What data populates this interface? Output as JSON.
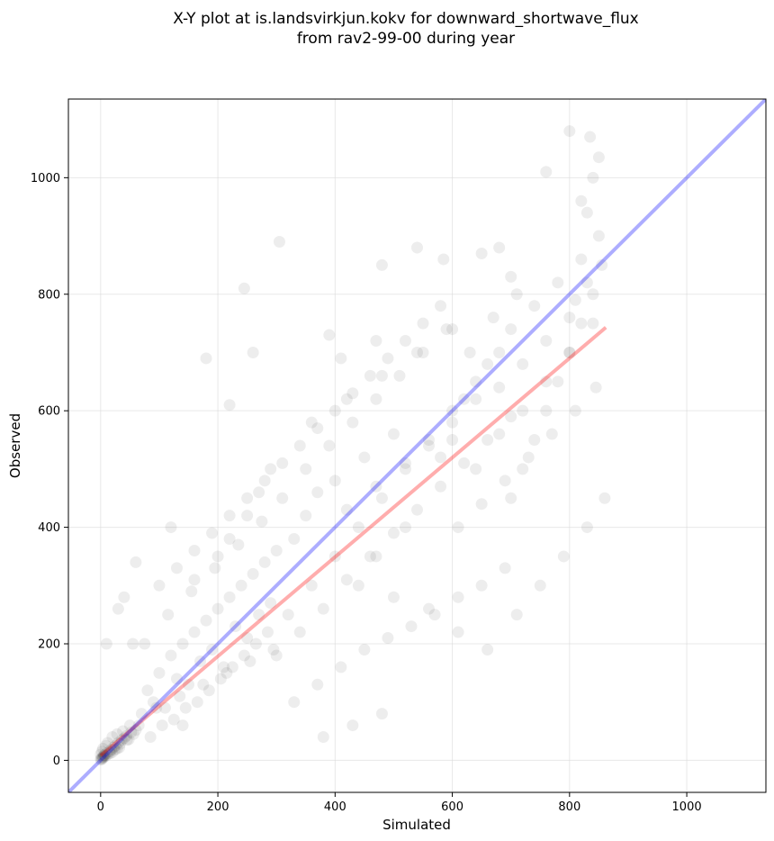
{
  "chart_data": {
    "type": "scatter",
    "title": "X-Y plot at is.landsvirkjun.kokv for downward_shortwave_flux",
    "subtitle": "from rav2-99-00 during year",
    "xlabel": "Simulated",
    "ylabel": "Observed",
    "xlim": [
      -55,
      1135
    ],
    "ylim": [
      -55,
      1135
    ],
    "x_ticks": [
      0,
      200,
      400,
      600,
      800,
      1000
    ],
    "y_ticks": [
      0,
      200,
      400,
      600,
      800,
      1000
    ],
    "grid": true,
    "point_color": "#000000",
    "point_opacity": 0.07,
    "identity_line": {
      "x": [
        -55,
        1135
      ],
      "y": [
        -55,
        1135
      ],
      "color": "#0000ff",
      "opacity": 0.32
    },
    "regression_line": {
      "x": [
        0,
        862
      ],
      "y": [
        8,
        743
      ],
      "color": "#ff0000",
      "opacity": 0.32
    },
    "points": {
      "x": [
        0,
        1,
        2,
        3,
        4,
        5,
        6,
        8,
        10,
        12,
        15,
        18,
        20,
        22,
        25,
        28,
        30,
        33,
        36,
        40,
        44,
        48,
        52,
        56,
        60,
        65,
        0,
        2,
        4,
        6,
        9,
        12,
        16,
        20,
        24,
        28,
        32,
        38,
        45,
        50,
        70,
        80,
        90,
        100,
        110,
        120,
        130,
        140,
        150,
        160,
        170,
        180,
        190,
        200,
        210,
        220,
        230,
        240,
        250,
        260,
        270,
        280,
        290,
        300,
        75,
        95,
        115,
        135,
        155,
        175,
        195,
        215,
        235,
        255,
        275,
        295,
        85,
        105,
        125,
        145,
        165,
        185,
        205,
        225,
        245,
        265,
        285,
        100,
        130,
        160,
        190,
        220,
        250,
        280,
        310,
        340,
        370,
        400,
        430,
        460,
        490,
        520,
        550,
        580,
        300,
        320,
        340,
        360,
        380,
        400,
        420,
        440,
        460,
        480,
        500,
        520,
        540,
        560,
        580,
        600,
        620,
        640,
        660,
        680,
        700,
        310,
        350,
        390,
        430,
        470,
        510,
        550,
        590,
        630,
        670,
        710,
        330,
        370,
        410,
        450,
        490,
        530,
        570,
        610,
        650,
        690,
        600,
        620,
        640,
        660,
        680,
        700,
        720,
        740,
        760,
        780,
        800,
        820,
        840,
        850,
        610,
        650,
        690,
        730,
        770,
        810,
        845,
        700,
        720,
        740,
        760,
        780,
        800,
        820,
        840,
        855,
        710,
        750,
        790,
        830,
        860,
        180,
        245,
        305,
        390,
        470,
        480,
        540,
        585,
        650,
        680,
        700,
        760,
        800,
        820,
        835,
        850,
        840,
        830,
        410,
        140,
        120,
        60,
        55,
        10,
        220,
        260,
        400,
        450,
        500,
        420,
        470,
        520,
        560,
        600,
        640,
        580,
        680,
        720,
        760,
        800,
        810,
        830,
        250,
        270,
        290,
        330,
        350,
        370,
        200,
        220,
        160,
        40,
        30,
        360,
        420,
        480,
        540,
        600,
        520,
        470,
        440,
        500,
        560,
        610,
        660,
        480,
        430,
        380
      ],
      "y": [
        2,
        1,
        4,
        3,
        6,
        5,
        9,
        7,
        12,
        10,
        15,
        18,
        14,
        22,
        25,
        20,
        30,
        28,
        35,
        38,
        42,
        36,
        48,
        45,
        52,
        60,
        10,
        15,
        20,
        8,
        25,
        30,
        12,
        40,
        18,
        45,
        22,
        50,
        35,
        60,
        80,
        120,
        100,
        150,
        90,
        180,
        140,
        200,
        130,
        220,
        170,
        240,
        190,
        260,
        160,
        280,
        230,
        300,
        210,
        320,
        250,
        340,
        270,
        360,
        200,
        90,
        250,
        110,
        290,
        130,
        330,
        150,
        370,
        170,
        410,
        190,
        40,
        60,
        70,
        90,
        100,
        120,
        140,
        160,
        180,
        200,
        220,
        300,
        330,
        360,
        390,
        420,
        450,
        480,
        510,
        540,
        570,
        600,
        630,
        660,
        690,
        720,
        750,
        780,
        180,
        250,
        220,
        300,
        260,
        350,
        310,
        400,
        350,
        450,
        390,
        500,
        430,
        550,
        470,
        600,
        510,
        650,
        550,
        700,
        590,
        450,
        500,
        540,
        580,
        620,
        660,
        700,
        740,
        700,
        760,
        800,
        100,
        130,
        160,
        190,
        210,
        230,
        250,
        280,
        300,
        330,
        550,
        620,
        500,
        680,
        560,
        740,
        600,
        780,
        650,
        820,
        700,
        860,
        750,
        900,
        400,
        440,
        480,
        520,
        560,
        600,
        640,
        450,
        500,
        550,
        600,
        650,
        700,
        750,
        800,
        850,
        250,
        300,
        350,
        400,
        450,
        690,
        810,
        890,
        730,
        720,
        850,
        880,
        860,
        870,
        880,
        830,
        1010,
        1080,
        960,
        1070,
        1035,
        1000,
        940,
        690,
        60,
        400,
        340,
        200,
        200,
        610,
        700,
        480,
        520,
        560,
        430,
        470,
        510,
        540,
        580,
        620,
        520,
        640,
        680,
        720,
        760,
        790,
        820,
        420,
        460,
        500,
        380,
        420,
        460,
        350,
        380,
        310,
        280,
        260,
        580,
        620,
        660,
        700,
        740,
        400,
        350,
        300,
        280,
        260,
        220,
        190,
        80,
        60,
        40
      ],
      "color": "#000000"
    }
  }
}
